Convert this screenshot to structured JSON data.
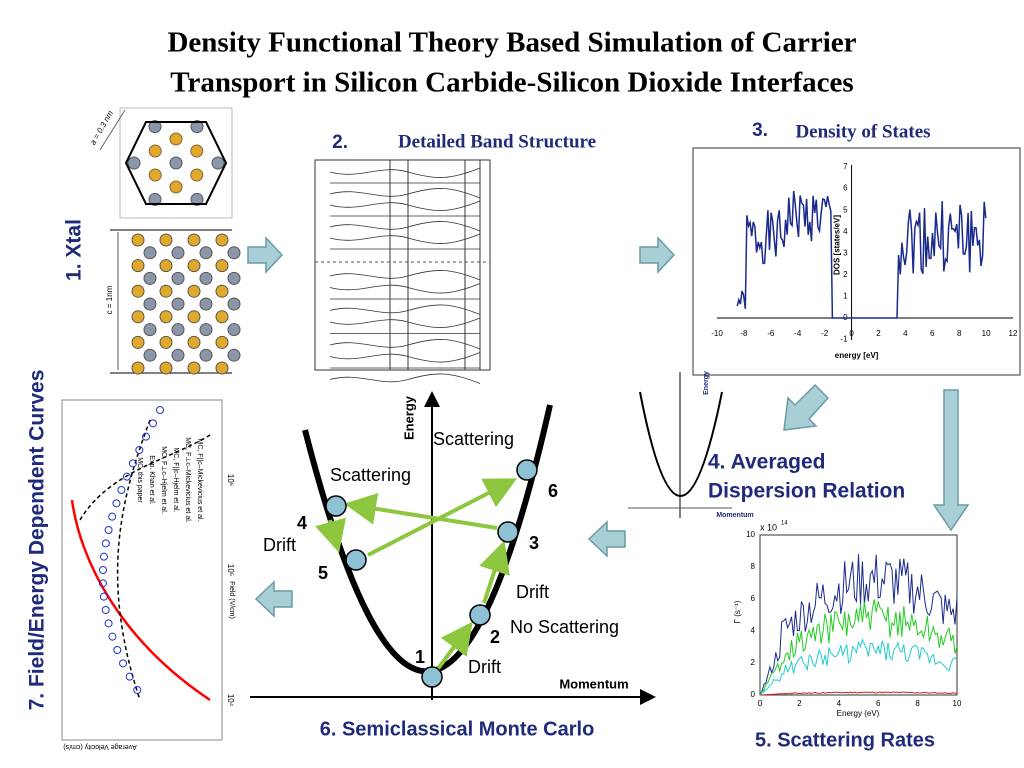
{
  "title": [
    "Density Functional Theory Based Simulation of Carrier",
    "Transport in Silicon Carbide-Silicon Dioxide Interfaces"
  ],
  "xtal": {
    "label": "1. Xtal",
    "a_label": "a = 0.3 nm",
    "c_label": "c = 1nm"
  },
  "band": {
    "number": "2.",
    "label": "Detailed Band Structure"
  },
  "dos": {
    "number": "3.",
    "label": "Density of States",
    "xlabel": "energy [eV]",
    "ylabel": "DOS [states/eV]",
    "xticks": [
      -10,
      -8,
      -6,
      -4,
      -2,
      0,
      2,
      4,
      6,
      8,
      10,
      12
    ],
    "yticks": [
      -1,
      0,
      1,
      2,
      3,
      4,
      5,
      6,
      7
    ]
  },
  "dispersion": {
    "label": [
      "4. Averaged",
      "Dispersion Relation"
    ],
    "ylabel": "Energy",
    "xlabel": "Momentum"
  },
  "scattering": {
    "label": "5. Scattering Rates",
    "xlabel": "Energy (eV)",
    "ylabel": "Γ (s⁻¹)",
    "scale": "x 10",
    "exponent": "14",
    "xticks": [
      0,
      2,
      4,
      6,
      8,
      10
    ],
    "yticks": [
      0,
      2,
      4,
      6,
      8,
      10
    ]
  },
  "monte_carlo": {
    "label": "6. Semiclassical Monte Carlo",
    "ylabel": "Energy",
    "xlabel": "Momentum",
    "annotations": [
      "Scattering",
      "Scattering",
      "6",
      "4",
      "Drift",
      "5",
      "3",
      "Drift",
      "2",
      "No Scattering",
      "1",
      "Drift"
    ]
  },
  "field": {
    "label": "7. Field/Energy Dependent Curves",
    "xlabel": "Field (V/cm)",
    "ylabel": "Average Velocity (cm/s)",
    "ticks": [
      "10⁴",
      "10⁵",
      "10⁶"
    ],
    "legend": [
      "MC, this paper",
      "Exp. Khan et al.",
      "MC, F⊥c–Hjelm et al.",
      "MC, F||c–Hjelm et al.",
      "MC, F⊥c–Mickevicius et al.",
      "MC, F||c–Mickevicius et al."
    ]
  }
}
